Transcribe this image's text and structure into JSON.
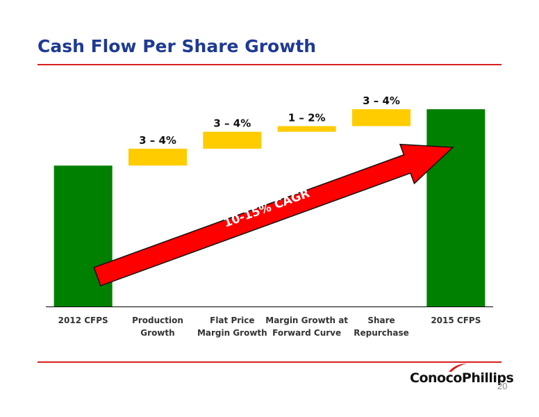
{
  "slide": {
    "title": "Cash Flow Per Share Growth",
    "page_number": "20",
    "logo_text": "ConocoPhillips"
  },
  "colors": {
    "title": "#1f3a93",
    "rule": "#d81e1e",
    "bar_total": "#008000",
    "bar_increment": "#ffcc00",
    "arrow": "#ff0000"
  },
  "chart_data": {
    "type": "bar",
    "subtype": "waterfall",
    "categories": [
      [
        "2012 CFPS"
      ],
      [
        "Production",
        "Growth"
      ],
      [
        "Flat Price",
        "Margin Growth"
      ],
      [
        "Margin Growth at",
        "Forward Curve"
      ],
      [
        "Share",
        "Repurchase"
      ],
      [
        "2015 CFPS"
      ]
    ],
    "bars": [
      {
        "kind": "total",
        "start": 0,
        "end": 100,
        "label": ""
      },
      {
        "kind": "increment",
        "start": 100,
        "end": 112,
        "label": "3 – 4%"
      },
      {
        "kind": "increment",
        "start": 112,
        "end": 124,
        "label": "3 – 4%"
      },
      {
        "kind": "increment",
        "start": 124,
        "end": 128,
        "label": "1 – 2%"
      },
      {
        "kind": "increment",
        "start": 128,
        "end": 140,
        "label": "3 – 4%"
      },
      {
        "kind": "total",
        "start": 0,
        "end": 140,
        "label": ""
      }
    ],
    "ylim": [
      0,
      146
    ],
    "grid": false,
    "annotation": {
      "text": "10-15% CAGR",
      "from_category": 0,
      "to_category": 5
    }
  }
}
